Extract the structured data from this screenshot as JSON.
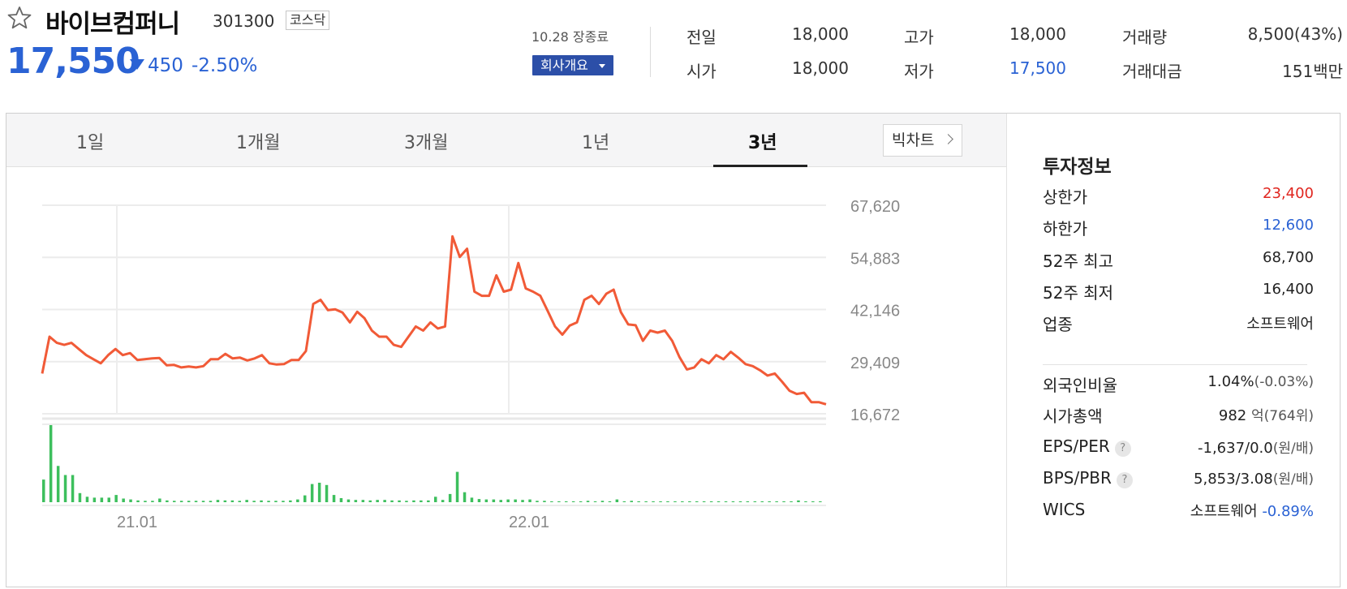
{
  "header": {
    "company_name": "바이브컴퍼니",
    "company_code": "301300",
    "market": "코스닥",
    "price": "17,550",
    "change_amount": "450",
    "change_rate": "-2.50%",
    "close_status": "10.28 장종료",
    "company_info_button": "회사개요",
    "quotes": [
      {
        "label": "전일",
        "value": "18,000"
      },
      {
        "label": "고가",
        "value": "18,000"
      },
      {
        "label": "거래량",
        "value": "8,500(43%)"
      },
      {
        "label": "시가",
        "value": "18,000"
      },
      {
        "label": "저가",
        "value": "17,500"
      },
      {
        "label": "거래대금",
        "value": "151백만"
      }
    ]
  },
  "chart_panel": {
    "tabs": [
      "1일",
      "1개월",
      "3개월",
      "1년",
      "3년"
    ],
    "active_tab": "3년",
    "big_chart_button": "빅차트"
  },
  "chart_data": {
    "type": "line",
    "x_ticks": [
      "21.01",
      "22.01"
    ],
    "y_ticks": [
      "67,620",
      "54,883",
      "42,146",
      "29,409",
      "16,672"
    ],
    "ylim": [
      16672,
      67620
    ],
    "series": [
      {
        "values": [
          26500,
          35500,
          34000,
          33500,
          34000,
          32500,
          31000,
          30000,
          29000,
          31000,
          32500,
          31000,
          31500,
          29800,
          30000,
          30200,
          30300,
          28500,
          28600,
          28000,
          28200,
          28000,
          28300,
          30000,
          30000,
          31300,
          30200,
          30400,
          29700,
          30200,
          31000,
          29000,
          28700,
          28800,
          29800,
          29800,
          32000,
          43500,
          44500,
          42000,
          42200,
          41400,
          39000,
          41600,
          40000,
          37000,
          35500,
          35500,
          33500,
          33000,
          35500,
          38000,
          37000,
          39000,
          37500,
          38000,
          60000,
          55000,
          57000,
          46500,
          45500,
          45500,
          50500,
          46500,
          47000,
          53500,
          47300,
          46500,
          45500,
          41800,
          38000,
          36000,
          38200,
          39000,
          44500,
          45500,
          43500,
          46000,
          47000,
          41500,
          38500,
          38300,
          34500,
          37000,
          36500,
          37000,
          34500,
          30500,
          27500,
          28000,
          30000,
          29000,
          31000,
          30000,
          31800,
          30400,
          28800,
          28300,
          27300,
          26000,
          26500,
          24500,
          22300,
          21500,
          21800,
          19500,
          19500,
          19000
        ],
        "color": "#f15a37"
      }
    ],
    "volume": [
      {
        "values": [
          5,
          17,
          8,
          6,
          6,
          2,
          1.2,
          1,
          1,
          1,
          1.6,
          0.8,
          0.6,
          0.4,
          0.3,
          0.3,
          0.8,
          0.4,
          0.3,
          0.3,
          0.3,
          0.3,
          0.3,
          0.3,
          0.5,
          0.4,
          0.4,
          0.3,
          0.5,
          0.3,
          0.4,
          0.3,
          0.3,
          0.3,
          0.4,
          0.6,
          1.5,
          4,
          4.3,
          3.8,
          1.6,
          0.9,
          0.6,
          0.5,
          0.5,
          0.4,
          0.5,
          0.5,
          0.4,
          0.4,
          0.3,
          0.4,
          0.4,
          0.4,
          1.2,
          0.5,
          1.8,
          6.7,
          2.2,
          1,
          0.7,
          0.6,
          0.6,
          0.5,
          0.6,
          0.6,
          0.5,
          0.6,
          0.3,
          0.3,
          0.2,
          0.2,
          0.2,
          0.2,
          0.2,
          0.3,
          0.2,
          0.3,
          0.2,
          0.6,
          0.2,
          0.3,
          0.2,
          0.2,
          0.2,
          0.2,
          0.2,
          0.2,
          0.2,
          0.2,
          0.2,
          0.2,
          0.2,
          0.2,
          0.2,
          0.2,
          0.2,
          0.2,
          0.2,
          0.2,
          0.2,
          0.2,
          0.2,
          0.2,
          0.4,
          0.2,
          0.2,
          0.2
        ],
        "color": "#3dbf5d"
      }
    ],
    "grid": true
  },
  "investment": {
    "title": "투자정보",
    "rows": [
      {
        "label": "상한가",
        "value": "23,400",
        "color": "red"
      },
      {
        "label": "하한가",
        "value": "12,600",
        "color": "blue"
      },
      {
        "label": "52주 최고",
        "value": "68,700"
      },
      {
        "label": "52주 최저",
        "value": "16,400"
      },
      {
        "label": "업종",
        "value": "소프트웨어"
      }
    ],
    "foreign_ratio": {
      "label": "외국인비율",
      "value": "1.04%",
      "sub": "(-0.03%)"
    },
    "market_cap": {
      "label": "시가총액",
      "value": "982",
      "unit": "억",
      "sub": "(764위)"
    },
    "eps_per": {
      "label": "EPS/PER",
      "value": "-1,637/0.0",
      "sub": "(원/배)"
    },
    "bps_pbr": {
      "label": "BPS/PBR",
      "value": "5,853/3.08",
      "sub": "(원/배)"
    },
    "wics": {
      "label": "WICS",
      "value": "소프트웨어",
      "change": "-0.89%"
    },
    "help_glyph": "?"
  }
}
